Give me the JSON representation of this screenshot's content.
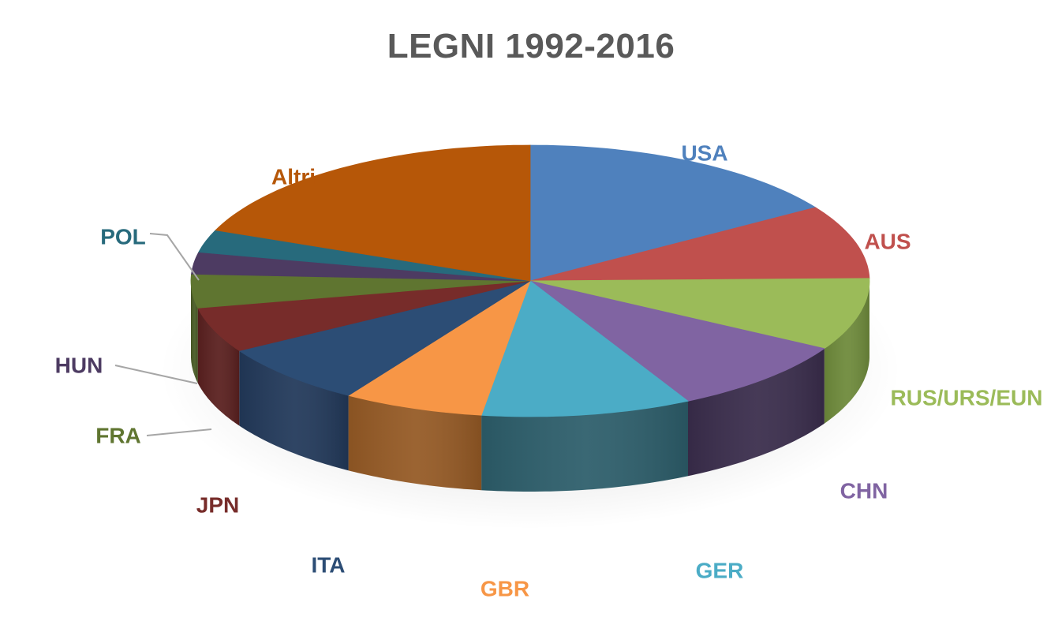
{
  "chart_data": {
    "type": "pie",
    "style": "3d",
    "title": "LEGNI 1992-2016",
    "slices": [
      {
        "label": "USA",
        "value": 15.9,
        "color": "#4F81BD",
        "side": "#385F8F"
      },
      {
        "label": "AUS",
        "value": 8.8,
        "color": "#C0504D",
        "side": "#8E3A38"
      },
      {
        "label": "RUS/URS/EUN",
        "value": 8.6,
        "color": "#9BBB59",
        "side": "#6E8A3B"
      },
      {
        "label": "CHN",
        "value": 9.0,
        "color": "#8064A2",
        "side": "#3A2D4C"
      },
      {
        "label": "GER",
        "value": 10.0,
        "color": "#4BACC6",
        "side": "#2D5E6B"
      },
      {
        "label": "GBR",
        "value": 6.7,
        "color": "#F79646",
        "side": "#955A25"
      },
      {
        "label": "ITA",
        "value": 7.4,
        "color": "#2C4D75",
        "side": "#22395A"
      },
      {
        "label": "JPN",
        "value": 5.4,
        "color": "#772C2A",
        "side": "#5A201F"
      },
      {
        "label": "FRA",
        "value": 4.0,
        "color": "#5F7530",
        "side": "#485A24"
      },
      {
        "label": "HUN",
        "value": 2.6,
        "color": "#4D3B62",
        "side": "#372A46"
      },
      {
        "label": "POL",
        "value": 2.7,
        "color": "#276A7C",
        "side": "#1D4F5C"
      },
      {
        "label": "Altri",
        "value": 18.9,
        "color": "#B65708",
        "side": "#7E3D06"
      }
    ],
    "legend": "none"
  }
}
